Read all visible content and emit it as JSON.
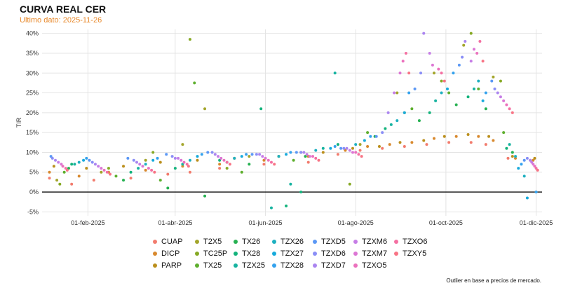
{
  "chart_data": {
    "type": "scatter",
    "title": "CURVA REAL CER",
    "subtitle": "Ultimo dato: 2025-11-26",
    "xlabel": "",
    "ylabel": "TIR",
    "ylim": [
      -0.06,
      0.41
    ],
    "yticks": [
      -0.05,
      0,
      0.05,
      0.1,
      0.15,
      0.2,
      0.25,
      0.3,
      0.35,
      0.4
    ],
    "yticklabels": [
      "-5%",
      "0%",
      "5%",
      "10%",
      "15%",
      "20%",
      "25%",
      "30%",
      "35%",
      "40%"
    ],
    "xlim": [
      0,
      338
    ],
    "xticks": [
      31,
      90,
      151,
      212,
      273,
      334
    ],
    "xticklabels": [
      "01-feb-2025",
      "01-abr-2025",
      "01-jun-2025",
      "01-ago-2025",
      "01-oct-2025",
      "01-dic-2025"
    ],
    "x_unit": "days since 2025-01-01",
    "grid": true,
    "zero_line": true,
    "legend_position": "bottom",
    "footnote": "Outlier en base a precios de mercado.",
    "series": [
      {
        "name": "CUAP",
        "color": "#f27c6e",
        "points": [
          [
            5,
            0.035
          ],
          [
            20,
            0.02
          ],
          [
            35,
            0.03
          ],
          [
            60,
            0.035
          ],
          [
            85,
            0.045
          ],
          [
            100,
            0.05
          ],
          [
            120,
            0.06
          ],
          [
            150,
            0.07
          ],
          [
            180,
            0.075
          ],
          [
            200,
            0.095
          ],
          [
            215,
            0.105
          ],
          [
            230,
            0.11
          ],
          [
            245,
            0.115
          ],
          [
            260,
            0.12
          ],
          [
            275,
            0.125
          ],
          [
            290,
            0.125
          ],
          [
            300,
            0.12
          ],
          [
            315,
            0.085
          ],
          [
            330,
            0.08
          ]
        ]
      },
      {
        "name": "DICP",
        "color": "#d8892e",
        "points": [
          [
            5,
            0.05
          ],
          [
            25,
            0.04
          ],
          [
            45,
            0.05
          ],
          [
            70,
            0.055
          ],
          [
            95,
            0.065
          ],
          [
            120,
            0.07
          ],
          [
            150,
            0.08
          ],
          [
            180,
            0.09
          ],
          [
            205,
            0.105
          ],
          [
            220,
            0.115
          ],
          [
            235,
            0.12
          ],
          [
            250,
            0.125
          ],
          [
            265,
            0.135
          ],
          [
            280,
            0.14
          ],
          [
            295,
            0.14
          ],
          [
            305,
            0.13
          ],
          [
            320,
            0.085
          ],
          [
            332,
            0.08
          ]
        ]
      },
      {
        "name": "PARP",
        "color": "#bb8f1c",
        "points": [
          [
            8,
            0.065
          ],
          [
            30,
            0.06
          ],
          [
            55,
            0.065
          ],
          [
            80,
            0.075
          ],
          [
            105,
            0.08
          ],
          [
            130,
            0.085
          ],
          [
            160,
            0.09
          ],
          [
            190,
            0.1
          ],
          [
            210,
            0.11
          ],
          [
            228,
            0.115
          ],
          [
            242,
            0.125
          ],
          [
            258,
            0.13
          ],
          [
            272,
            0.14
          ],
          [
            288,
            0.145
          ],
          [
            302,
            0.14
          ],
          [
            318,
            0.09
          ],
          [
            333,
            0.085
          ]
        ]
      },
      {
        "name": "T2X5",
        "color": "#a3a52b",
        "points": [
          [
            10,
            0.03
          ],
          [
            40,
            0.05
          ],
          [
            70,
            0.08
          ],
          [
            95,
            0.12
          ],
          [
            110,
            0.21
          ],
          [
            140,
            0.09
          ],
          [
            175,
            0.1
          ],
          [
            215,
            0.12
          ],
          [
            240,
            0.25
          ],
          [
            265,
            0.3
          ],
          [
            285,
            0.37
          ],
          [
            305,
            0.29
          ]
        ]
      },
      {
        "name": "TC25P",
        "color": "#86a924",
        "points": [
          [
            12,
            0.02
          ],
          [
            45,
            0.06
          ],
          [
            75,
            0.1
          ],
          [
            100,
            0.385
          ],
          [
            125,
            0.06
          ],
          [
            160,
            0.09
          ],
          [
            208,
            0.02
          ],
          [
            245,
            0.2
          ],
          [
            270,
            0.28
          ],
          [
            290,
            0.4
          ],
          [
            310,
            0.28
          ]
        ]
      },
      {
        "name": "TX25",
        "color": "#5eaf2e",
        "points": [
          [
            15,
            0.05
          ],
          [
            50,
            0.04
          ],
          [
            80,
            0.03
          ],
          [
            103,
            0.275
          ],
          [
            135,
            0.05
          ],
          [
            170,
            0.08
          ],
          [
            220,
            0.15
          ],
          [
            250,
            0.21
          ],
          [
            275,
            0.25
          ],
          [
            295,
            0.26
          ],
          [
            312,
            0.15
          ]
        ]
      },
      {
        "name": "TX26",
        "color": "#27b152",
        "points": [
          [
            18,
            0.06
          ],
          [
            55,
            0.03
          ],
          [
            85,
            0.01
          ],
          [
            110,
            -0.01
          ],
          [
            140,
            0.07
          ],
          [
            178,
            0.09
          ],
          [
            225,
            0.14
          ],
          [
            255,
            0.18
          ],
          [
            280,
            0.22
          ],
          [
            300,
            0.21
          ],
          [
            318,
            0.1
          ]
        ]
      },
      {
        "name": "TX28",
        "color": "#13b37c",
        "points": [
          [
            20,
            0.07
          ],
          [
            60,
            0.05
          ],
          [
            90,
            0.06
          ],
          [
            120,
            0.08
          ],
          [
            148,
            0.21
          ],
          [
            165,
            -0.035
          ],
          [
            175,
            0.0
          ],
          [
            200,
            0.12
          ],
          [
            232,
            0.16
          ],
          [
            262,
            0.2
          ],
          [
            288,
            0.24
          ],
          [
            314,
            0.11
          ]
        ]
      },
      {
        "name": "TZX25",
        "color": "#17b3a0",
        "points": [
          [
            22,
            0.07
          ],
          [
            65,
            0.06
          ],
          [
            95,
            0.07
          ],
          [
            125,
            0.075
          ],
          [
            155,
            -0.04
          ],
          [
            168,
            0.02
          ],
          [
            190,
            0.11
          ],
          [
            198,
            0.3
          ],
          [
            236,
            0.17
          ],
          [
            266,
            0.23
          ],
          [
            292,
            0.26
          ],
          [
            316,
            0.12
          ]
        ]
      },
      {
        "name": "TZX26",
        "color": "#1eb0c0",
        "points": [
          [
            25,
            0.075
          ],
          [
            70,
            0.07
          ],
          [
            100,
            0.08
          ],
          [
            130,
            0.085
          ],
          [
            160,
            0.09
          ],
          [
            185,
            0.105
          ],
          [
            212,
            0.12
          ],
          [
            240,
            0.18
          ],
          [
            270,
            0.25
          ],
          [
            295,
            0.28
          ],
          [
            320,
            0.09
          ],
          [
            326,
            0.04
          ]
        ]
      },
      {
        "name": "TZX27",
        "color": "#17aadb",
        "points": [
          [
            28,
            0.08
          ],
          [
            75,
            0.08
          ],
          [
            105,
            0.09
          ],
          [
            135,
            0.09
          ],
          [
            165,
            0.095
          ],
          [
            195,
            0.11
          ],
          [
            218,
            0.13
          ],
          [
            245,
            0.2
          ],
          [
            274,
            0.26
          ],
          [
            298,
            0.23
          ],
          [
            322,
            0.06
          ],
          [
            328,
            -0.015
          ]
        ]
      },
      {
        "name": "TZX28",
        "color": "#34a2ee",
        "points": [
          [
            30,
            0.085
          ],
          [
            78,
            0.085
          ],
          [
            108,
            0.095
          ],
          [
            138,
            0.095
          ],
          [
            168,
            0.1
          ],
          [
            198,
            0.115
          ],
          [
            222,
            0.14
          ],
          [
            248,
            0.25
          ],
          [
            278,
            0.3
          ],
          [
            300,
            0.25
          ],
          [
            324,
            0.07
          ],
          [
            334,
            0.0
          ]
        ]
      },
      {
        "name": "TZXD5",
        "color": "#5b98f5",
        "points": [
          [
            6,
            0.09
          ],
          [
            32,
            0.08
          ],
          [
            58,
            0.085
          ],
          [
            84,
            0.095
          ],
          [
            112,
            0.1
          ],
          [
            142,
            0.095
          ],
          [
            172,
            0.1
          ],
          [
            202,
            0.11
          ],
          [
            226,
            0.14
          ],
          [
            252,
            0.26
          ],
          [
            282,
            0.32
          ],
          [
            304,
            0.28
          ],
          [
            326,
            0.08
          ]
        ]
      },
      {
        "name": "TZXD6",
        "color": "#8a8ef6",
        "points": [
          [
            7,
            0.085
          ],
          [
            34,
            0.075
          ],
          [
            62,
            0.08
          ],
          [
            88,
            0.09
          ],
          [
            115,
            0.1
          ],
          [
            145,
            0.095
          ],
          [
            175,
            0.1
          ],
          [
            204,
            0.11
          ],
          [
            230,
            0.15
          ],
          [
            256,
            0.3
          ],
          [
            284,
            0.34
          ],
          [
            306,
            0.26
          ],
          [
            328,
            0.085
          ]
        ]
      },
      {
        "name": "TZXD7",
        "color": "#ab85f0",
        "points": [
          [
            9,
            0.08
          ],
          [
            36,
            0.07
          ],
          [
            64,
            0.075
          ],
          [
            90,
            0.085
          ],
          [
            117,
            0.095
          ],
          [
            147,
            0.095
          ],
          [
            177,
            0.1
          ],
          [
            206,
            0.11
          ],
          [
            234,
            0.2
          ],
          [
            258,
            0.4
          ],
          [
            286,
            0.38
          ],
          [
            308,
            0.25
          ],
          [
            330,
            0.08
          ]
        ]
      },
      {
        "name": "TZXM6",
        "color": "#c67de6",
        "points": [
          [
            11,
            0.075
          ],
          [
            38,
            0.065
          ],
          [
            66,
            0.07
          ],
          [
            92,
            0.085
          ],
          [
            119,
            0.09
          ],
          [
            149,
            0.09
          ],
          [
            179,
            0.095
          ],
          [
            208,
            0.105
          ],
          [
            238,
            0.25
          ],
          [
            262,
            0.35
          ],
          [
            290,
            0.33
          ],
          [
            310,
            0.24
          ],
          [
            331,
            0.075
          ]
        ]
      },
      {
        "name": "TZXM7",
        "color": "#dc76d4",
        "points": [
          [
            13,
            0.07
          ],
          [
            40,
            0.06
          ],
          [
            68,
            0.065
          ],
          [
            94,
            0.08
          ],
          [
            121,
            0.085
          ],
          [
            151,
            0.085
          ],
          [
            181,
            0.09
          ],
          [
            210,
            0.1
          ],
          [
            242,
            0.3
          ],
          [
            264,
            0.32
          ],
          [
            292,
            0.36
          ],
          [
            312,
            0.23
          ],
          [
            332,
            0.07
          ]
        ]
      },
      {
        "name": "TZXO5",
        "color": "#eb71bd",
        "points": [
          [
            14,
            0.065
          ],
          [
            42,
            0.055
          ],
          [
            72,
            0.06
          ],
          [
            96,
            0.075
          ],
          [
            123,
            0.08
          ],
          [
            153,
            0.08
          ],
          [
            183,
            0.09
          ],
          [
            212,
            0.1
          ],
          [
            244,
            0.33
          ],
          [
            268,
            0.31
          ],
          [
            294,
            0.35
          ],
          [
            314,
            0.22
          ],
          [
            333,
            0.065
          ]
        ]
      },
      {
        "name": "TZXO6",
        "color": "#f470a2",
        "points": [
          [
            16,
            0.06
          ],
          [
            44,
            0.05
          ],
          [
            74,
            0.055
          ],
          [
            98,
            0.07
          ],
          [
            125,
            0.075
          ],
          [
            155,
            0.075
          ],
          [
            185,
            0.085
          ],
          [
            214,
            0.095
          ],
          [
            246,
            0.35
          ],
          [
            270,
            0.3
          ],
          [
            296,
            0.38
          ],
          [
            316,
            0.21
          ],
          [
            334,
            0.06
          ]
        ]
      },
      {
        "name": "TZXY5",
        "color": "#f87485",
        "points": [
          [
            17,
            0.055
          ],
          [
            46,
            0.045
          ],
          [
            76,
            0.05
          ],
          [
            99,
            0.065
          ],
          [
            127,
            0.07
          ],
          [
            157,
            0.07
          ],
          [
            187,
            0.08
          ],
          [
            216,
            0.09
          ],
          [
            248,
            0.3
          ],
          [
            272,
            0.28
          ],
          [
            298,
            0.33
          ],
          [
            318,
            0.2
          ],
          [
            335,
            0.055
          ]
        ]
      }
    ]
  }
}
